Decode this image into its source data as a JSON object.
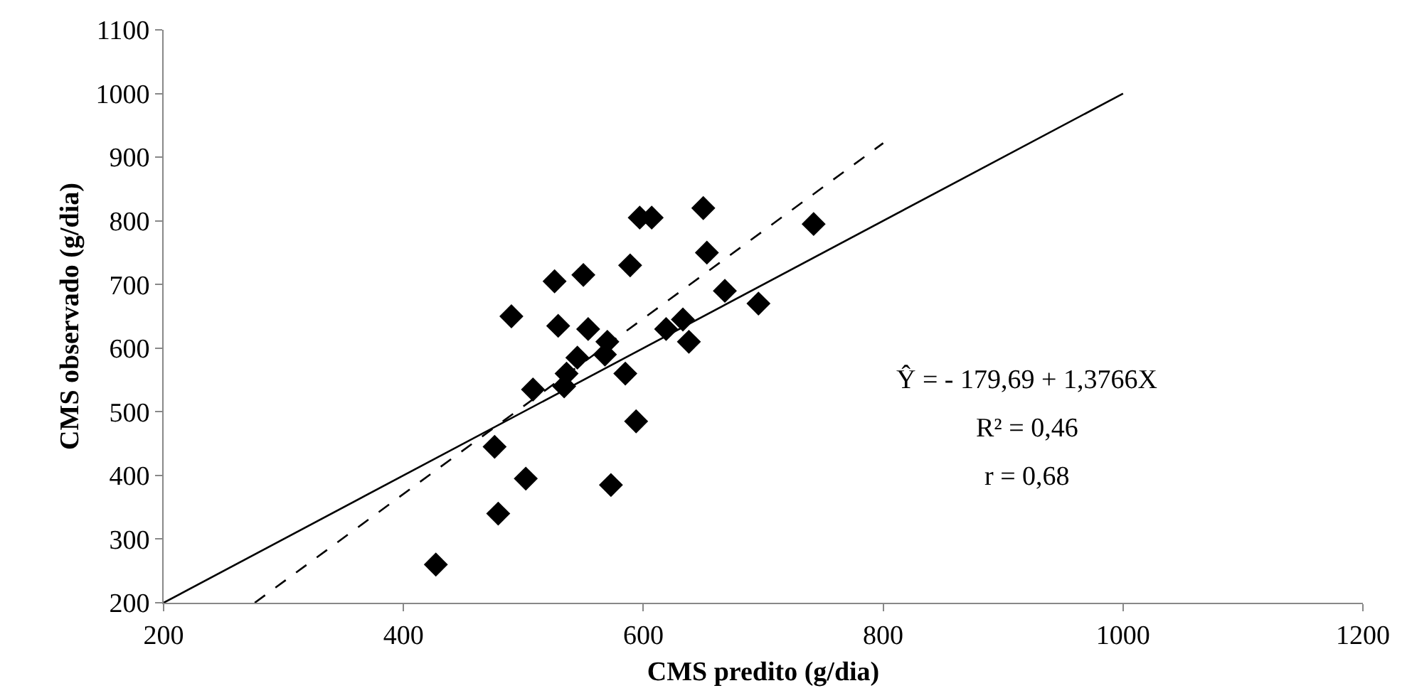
{
  "chart_data": {
    "type": "scatter",
    "xlabel": "CMS predito (g/dia)",
    "ylabel": "CMS observado (g/dia)",
    "xlim": [
      200,
      1200
    ],
    "xticks": [
      200,
      400,
      600,
      800,
      1000,
      1200
    ],
    "ylim": [
      200,
      1100
    ],
    "yticks": [
      200,
      300,
      400,
      500,
      600,
      700,
      800,
      900,
      1000,
      1100
    ],
    "marker": "diamond",
    "series": [
      {
        "color": "#000000",
        "x": [
          427,
          476,
          479,
          502,
          490,
          508,
          526,
          529,
          550,
          554,
          534,
          536,
          545,
          570,
          568,
          585,
          594,
          573,
          589,
          597,
          607,
          650,
          653,
          668,
          619,
          633,
          638,
          696,
          742
        ],
        "values": [
          260,
          445,
          340,
          395,
          650,
          535,
          705,
          635,
          715,
          630,
          540,
          560,
          585,
          610,
          590,
          560,
          485,
          385,
          730,
          805,
          805,
          820,
          750,
          690,
          630,
          645,
          610,
          670,
          795
        ]
      },
      {
        "type": "line",
        "color": "#000000",
        "line_style": "solid",
        "marker": "none",
        "x": [
          200,
          1000
        ],
        "values": [
          200,
          1000
        ]
      },
      {
        "type": "line",
        "color": "#000000",
        "line_style": "dashed",
        "marker": "none",
        "x": [
          276,
          800
        ],
        "values": [
          200,
          922
        ]
      }
    ],
    "annotations": [
      "Ŷ = - 179,69 + 1,3766X",
      "R² = 0,46",
      "r = 0,68"
    ]
  }
}
